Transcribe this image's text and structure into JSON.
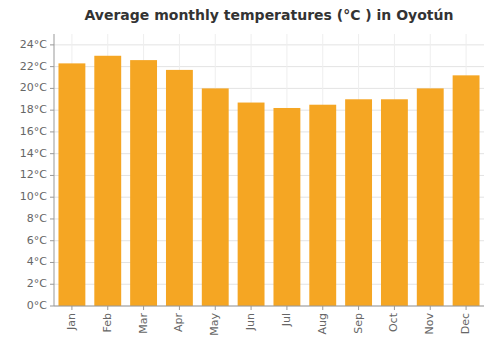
{
  "chart_data": {
    "type": "bar",
    "title": "Average monthly temperatures (°C ) in Oyotún",
    "categories": [
      "Jan",
      "Feb",
      "Mar",
      "Apr",
      "May",
      "Jun",
      "Jul",
      "Aug",
      "Sep",
      "Oct",
      "Nov",
      "Dec"
    ],
    "values": [
      22.3,
      23.0,
      22.6,
      21.7,
      20.0,
      18.7,
      18.2,
      18.5,
      19.0,
      19.0,
      20.0,
      21.2
    ],
    "color": "#F5A623",
    "ylim": [
      0,
      25
    ],
    "yticks": [
      {
        "value": 0,
        "label": "0°C"
      },
      {
        "value": 2,
        "label": "2°C"
      },
      {
        "value": 4,
        "label": "4°C"
      },
      {
        "value": 6,
        "label": "6°C"
      },
      {
        "value": 8,
        "label": "8°C"
      },
      {
        "value": 10,
        "label": "10°C"
      },
      {
        "value": 12,
        "label": "12°C"
      },
      {
        "value": 14,
        "label": "14°C"
      },
      {
        "value": 16,
        "label": "16°C"
      },
      {
        "value": 18,
        "label": "18°C"
      },
      {
        "value": 20,
        "label": "20°C"
      },
      {
        "value": 22,
        "label": "22°C"
      },
      {
        "value": 24,
        "label": "24°C"
      }
    ],
    "grid": true
  }
}
